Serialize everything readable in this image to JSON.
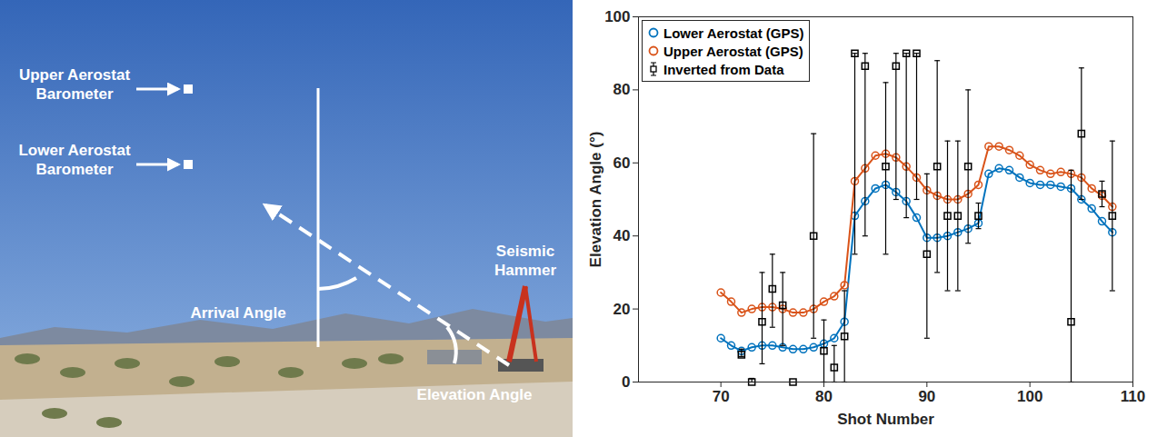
{
  "chart_data": {
    "type": "line",
    "x_label": "Shot Number",
    "y_label": "Elevation Angle (°)",
    "xlim": [
      62,
      110
    ],
    "xticks": [
      70,
      80,
      90,
      100,
      110
    ],
    "ylim": [
      0,
      100
    ],
    "yticks": [
      0,
      20,
      40,
      60,
      80,
      100
    ],
    "grid": false,
    "legend": "upper left",
    "series": [
      {
        "name": "Lower Aerostat (GPS)",
        "color": "#0072bd",
        "marker": "circle",
        "line_style": "solid",
        "x": [
          70,
          71,
          72,
          73,
          74,
          75,
          76,
          77,
          78,
          79,
          80,
          81,
          82,
          83,
          84,
          85,
          86,
          87,
          88,
          89,
          90,
          91,
          92,
          93,
          94,
          95,
          96,
          97,
          98,
          99,
          100,
          101,
          102,
          103,
          104,
          105,
          106,
          107,
          108
        ],
        "values": [
          12,
          10,
          8.5,
          9.5,
          10,
          10,
          9.5,
          9,
          9,
          9.5,
          10.5,
          12,
          16.5,
          45.5,
          49.5,
          53,
          54,
          52,
          49.5,
          45,
          39.5,
          39.5,
          40,
          41,
          42,
          43.5,
          57,
          58.5,
          58,
          56,
          54.5,
          54,
          54,
          53.5,
          53,
          50,
          47.5,
          44,
          41
        ]
      },
      {
        "name": "Upper Aerostat (GPS)",
        "color": "#d95319",
        "marker": "circle",
        "line_style": "solid",
        "x": [
          70,
          71,
          72,
          73,
          74,
          75,
          76,
          77,
          78,
          79,
          80,
          81,
          82,
          83,
          84,
          85,
          86,
          87,
          88,
          89,
          90,
          91,
          92,
          93,
          94,
          95,
          96,
          97,
          98,
          99,
          100,
          101,
          102,
          103,
          104,
          105,
          106,
          107,
          108
        ],
        "values": [
          24.5,
          22,
          19,
          20,
          20.5,
          20.5,
          20,
          19,
          19,
          20,
          22,
          23.5,
          26.5,
          55,
          58.5,
          62,
          62.5,
          61.5,
          59,
          56,
          52.5,
          51,
          50,
          50,
          51.5,
          54,
          64.5,
          64.5,
          63.5,
          62,
          59.5,
          58,
          57,
          57.5,
          57,
          56,
          53,
          51,
          48
        ]
      },
      {
        "name": "Inverted from Data",
        "color": "#000000",
        "type": "scatter",
        "marker": "square",
        "line_style": "none",
        "x": [
          72,
          73,
          74,
          75,
          76,
          77,
          79,
          80,
          81,
          82,
          83,
          84,
          86,
          87,
          88,
          89,
          90,
          91,
          92,
          93,
          94,
          95,
          104,
          105,
          107,
          108
        ],
        "values": [
          7.5,
          0,
          16.5,
          25.5,
          21,
          0,
          40,
          8.5,
          4,
          12.5,
          90,
          86.5,
          59,
          86.5,
          90,
          90,
          35,
          59,
          45.5,
          45.5,
          59,
          45.5,
          16.5,
          68,
          51.5,
          45.5
        ],
        "error_low": [
          7,
          0,
          5,
          15,
          10,
          0,
          12,
          0,
          0,
          0,
          35,
          40,
          35,
          50,
          45,
          50,
          12,
          30,
          25,
          25,
          38,
          42,
          0,
          50,
          48,
          25
        ],
        "error_high": [
          9,
          1,
          30,
          35,
          30,
          0,
          68,
          17,
          10,
          25,
          90,
          90,
          82,
          90,
          90,
          90,
          57,
          88,
          66,
          66,
          80,
          49,
          58,
          86,
          55,
          66
        ]
      }
    ]
  },
  "photo_annotations": {
    "upper_barometer": [
      "Upper Aerostat",
      "Barometer"
    ],
    "lower_barometer": [
      "Lower Aerostat",
      "Barometer"
    ],
    "arrival_angle": "Arrival Angle",
    "source": [
      "Seismic",
      "Hammer"
    ],
    "elevation_angle": "Elevation Angle"
  }
}
